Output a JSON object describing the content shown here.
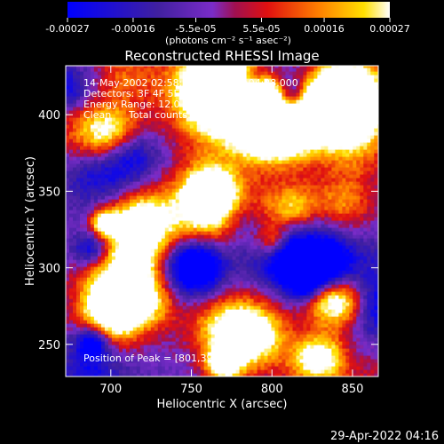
{
  "colorbar": {
    "ticks": [
      "-0.00027",
      "-0.00016",
      "-5.5e-05",
      "5.5e-05",
      "0.00016",
      "0.00027"
    ],
    "tick_values": [
      -0.00027,
      -0.00016,
      -5.5e-05,
      5.5e-05,
      0.00016,
      0.00027
    ],
    "range": [
      -0.00027,
      0.00027
    ],
    "unit_label": "(photons cm⁻² s⁻¹ asec⁻²)",
    "colors": [
      "#0000ff",
      "#4020a0",
      "#7a2cc8",
      "#a01050",
      "#e01010",
      "#ff8000",
      "#ffe000",
      "#ffffff"
    ]
  },
  "chart_data": {
    "type": "heatmap",
    "title": "Reconstructed RHESSI Image",
    "xlabel": "Heliocentric X (arcsec)",
    "ylabel": "Heliocentric Y (arcsec)",
    "xlim": [
      672,
      866
    ],
    "ylim": [
      229,
      432
    ],
    "x_ticks": [
      700,
      750,
      800,
      850
    ],
    "y_ticks": [
      250,
      300,
      350,
      400
    ],
    "annotations": {
      "time": "14-May-2002 02:58:28.000 to 03:04:28.000",
      "detectors": "Detectors: 3F 4F 5F 6F 7F 8F, Att: 0",
      "energy": "Energy Range: 12.0 - 25.0 keV",
      "clean": "Clean",
      "counts": "Total counts: 3.21E+03",
      "peak": "Position of Peak = [801,394]"
    },
    "peak_position": [
      801,
      394
    ],
    "grid": false
  },
  "footer": {
    "timestamp": "29-Apr-2022 04:16"
  }
}
